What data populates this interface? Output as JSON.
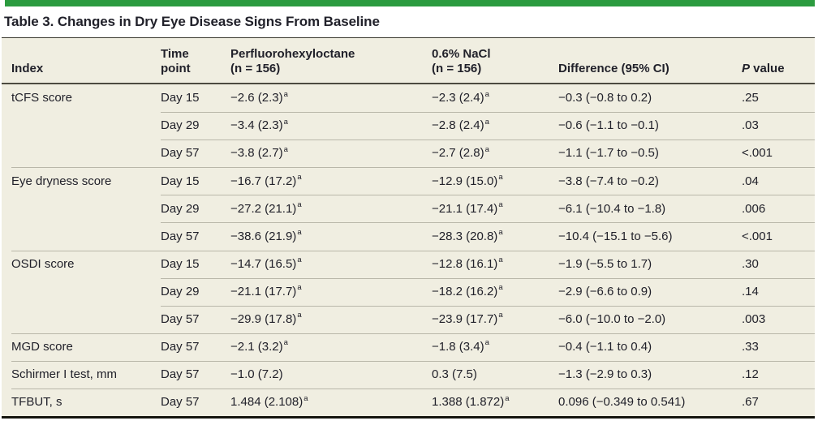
{
  "title": "Table 3. Changes in Dry Eye Disease Signs From Baseline",
  "colors": {
    "accent_green": "#2b9b3f",
    "row_background": "#f0eee1",
    "separator": "#b9b7a9",
    "header_rule": "#4c4a40",
    "bottom_rule": "#15150e"
  },
  "table": {
    "headers": {
      "index": "Index",
      "time": "Time\npoint",
      "drug": "Perfluorohexyloctane\n(n = 156)",
      "nacl": "0.6% NaCl\n(n = 156)",
      "diff": "Difference (95% CI)",
      "p_italic": "P",
      "p_rest": " value"
    },
    "footnote_marker": "a",
    "rows": [
      {
        "index": "tCFS score",
        "time": "Day 15",
        "drug": "−2.6 (2.3)",
        "drug_sup": true,
        "nacl": "−2.3 (2.4)",
        "nacl_sup": true,
        "diff": "−0.3 (−0.8 to 0.2)",
        "p": ".25",
        "sep": "none"
      },
      {
        "index": "",
        "time": "Day 29",
        "drug": "−3.4 (2.3)",
        "drug_sup": true,
        "nacl": "−2.8 (2.4)",
        "nacl_sup": true,
        "diff": "−0.6 (−1.1 to −0.1)",
        "p": ".03",
        "sep": "indent"
      },
      {
        "index": "",
        "time": "Day 57",
        "drug": "−3.8 (2.7)",
        "drug_sup": true,
        "nacl": "−2.7 (2.8)",
        "nacl_sup": true,
        "diff": "−1.1 (−1.7 to −0.5)",
        "p": "<.001",
        "sep": "indent"
      },
      {
        "index": "Eye dryness score",
        "time": "Day 15",
        "drug": "−16.7 (17.2)",
        "drug_sup": true,
        "nacl": "−12.9 (15.0)",
        "nacl_sup": true,
        "diff": "−3.8 (−7.4 to −0.2)",
        "p": ".04",
        "sep": "full"
      },
      {
        "index": "",
        "time": "Day 29",
        "drug": "−27.2 (21.1)",
        "drug_sup": true,
        "nacl": "−21.1 (17.4)",
        "nacl_sup": true,
        "diff": "−6.1 (−10.4 to −1.8)",
        "p": ".006",
        "sep": "indent"
      },
      {
        "index": "",
        "time": "Day 57",
        "drug": "−38.6 (21.9)",
        "drug_sup": true,
        "nacl": "−28.3 (20.8)",
        "nacl_sup": true,
        "diff": "−10.4 (−15.1 to −5.6)",
        "p": "<.001",
        "sep": "indent"
      },
      {
        "index": "OSDI score",
        "time": "Day 15",
        "drug": "−14.7 (16.5)",
        "drug_sup": true,
        "nacl": "−12.8 (16.1)",
        "nacl_sup": true,
        "diff": "−1.9 (−5.5 to 1.7)",
        "p": ".30",
        "sep": "full"
      },
      {
        "index": "",
        "time": "Day 29",
        "drug": "−21.1 (17.7)",
        "drug_sup": true,
        "nacl": "−18.2 (16.2)",
        "nacl_sup": true,
        "diff": "−2.9 (−6.6 to 0.9)",
        "p": ".14",
        "sep": "indent"
      },
      {
        "index": "",
        "time": "Day 57",
        "drug": "−29.9 (17.8)",
        "drug_sup": true,
        "nacl": "−23.9 (17.7)",
        "nacl_sup": true,
        "diff": "−6.0 (−10.0 to −2.0)",
        "p": ".003",
        "sep": "indent"
      },
      {
        "index": "MGD score",
        "time": "Day 57",
        "drug": "−2.1 (3.2)",
        "drug_sup": true,
        "nacl": "−1.8 (3.4)",
        "nacl_sup": true,
        "diff": "−0.4 (−1.1 to 0.4)",
        "p": ".33",
        "sep": "full"
      },
      {
        "index": "Schirmer I test, mm",
        "time": "Day 57",
        "drug": "−1.0 (7.2)",
        "drug_sup": false,
        "nacl": "0.3 (7.5)",
        "nacl_sup": false,
        "diff": "−1.3 (−2.9 to 0.3)",
        "p": ".12",
        "sep": "full"
      },
      {
        "index": "TFBUT, s",
        "time": "Day 57",
        "drug": "1.484 (2.108)",
        "drug_sup": true,
        "nacl": "1.388 (1.872)",
        "nacl_sup": true,
        "diff": "0.096 (−0.349 to 0.541)",
        "p": ".67",
        "sep": "full"
      }
    ]
  }
}
